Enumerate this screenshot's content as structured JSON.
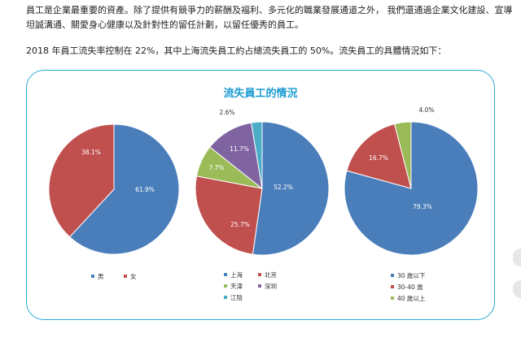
{
  "paragraphs": {
    "p1": "員工是企業最重要的資產。除了提供有競爭力的薪酬及福利、多元化的職業發展通道之外， 我們還通過企業文化建設、宣導坦誠溝通、關愛身心健康以及針對性的留任計劃，以留任優秀的員工。",
    "p2": "2018 年員工流失率控制在 22%，其中上海流失員工約占總流失員工的 50%。流失員工的具體情況如下："
  },
  "panel_title": "流失員工的情況",
  "colors": {
    "blue": "#4a7ebb",
    "red": "#c0504d",
    "green": "#9bbb59",
    "purple": "#8064a2",
    "cyan": "#4bacc6",
    "panel_border": "#2aa8d8",
    "title": "#1a9bd1"
  },
  "chart_data": [
    {
      "type": "pie",
      "categories": [
        "男",
        "女"
      ],
      "values": [
        61.9,
        38.1
      ],
      "labels": [
        "61.9%",
        "38.1%"
      ],
      "colors": [
        "#4a7ebb",
        "#c0504d"
      ]
    },
    {
      "type": "pie",
      "categories": [
        "上海",
        "北京",
        "天津",
        "深圳",
        "江陰"
      ],
      "values": [
        52.2,
        25.7,
        7.7,
        11.7,
        2.6
      ],
      "labels": [
        "52.2%",
        "25.7%",
        "7.7%",
        "11.7%",
        "2.6%"
      ],
      "colors": [
        "#4a7ebb",
        "#c0504d",
        "#9bbb59",
        "#8064a2",
        "#4bacc6"
      ]
    },
    {
      "type": "pie",
      "categories": [
        "30 歲以下",
        "30-40 歲",
        "40 歲以上"
      ],
      "values": [
        79.3,
        16.7,
        4.0
      ],
      "labels": [
        "79.3%",
        "16.7%",
        "4.0%"
      ],
      "colors": [
        "#4a7ebb",
        "#c0504d",
        "#9bbb59"
      ]
    }
  ]
}
